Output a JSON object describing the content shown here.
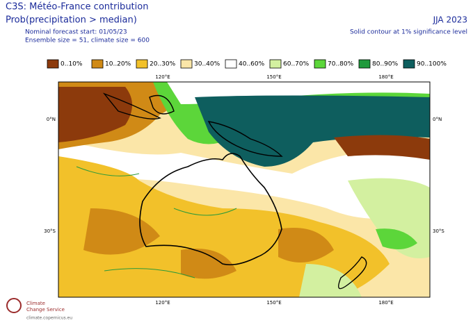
{
  "header": {
    "title": "C3S: Météo-France contribution",
    "subtitle": "Prob(precipitation > median)",
    "forecast_start": "Nominal forecast start: 01/05/23",
    "ensemble": "Ensemble size = 51, climate size = 600",
    "season": "JJA 2023",
    "note": "Solid contour at 1% significance level"
  },
  "legend": {
    "items": [
      {
        "label": "0..10%",
        "color": "#8c3a0c"
      },
      {
        "label": "10..20%",
        "color": "#d08a16"
      },
      {
        "label": "20..30%",
        "color": "#f2c12a"
      },
      {
        "label": "30..40%",
        "color": "#fbe6a8"
      },
      {
        "label": "40..60%",
        "color": "#ffffff"
      },
      {
        "label": "60..70%",
        "color": "#d3f0a0"
      },
      {
        "label": "70..80%",
        "color": "#5cd63a"
      },
      {
        "label": "80..90%",
        "color": "#1f9a3c"
      },
      {
        "label": "90..100%",
        "color": "#0e5e5e"
      }
    ]
  },
  "map": {
    "lon_labels": [
      "120°E",
      "150°E",
      "180°E"
    ],
    "lat_labels": [
      "0°N",
      "30°S"
    ]
  },
  "footer": {
    "logo_line1": "Climate",
    "logo_line2": "Change Service",
    "url": "climate.copernicus.eu"
  }
}
